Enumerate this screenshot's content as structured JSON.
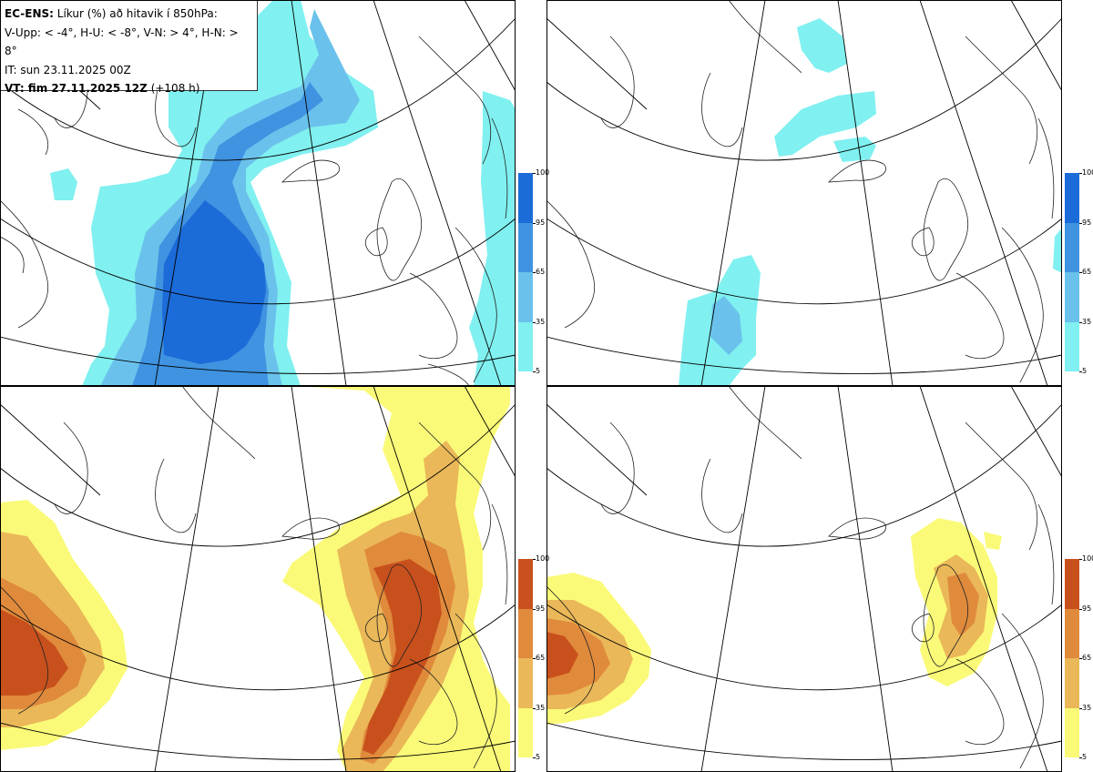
{
  "info": {
    "line1_bold": "EC-ENS:",
    "line1_rest": " Líkur (%) að hitavik í 850hPa:",
    "line2": "V-Upp: < -4°, H-U: < -8°, V-N: > 4°, H-N: > 8°",
    "line3": "IT: sun 23.11.2025 00Z",
    "line4_bold": "VT: fim 27.11.2025 12Z",
    "line4_rest": " (+108 h)"
  },
  "colorbars": {
    "ticks": [
      "100",
      "95",
      "65",
      "35",
      "5"
    ],
    "cold_colors": [
      "#1b6bd8",
      "#3f93e0",
      "#6ac2ec",
      "#80f0f0"
    ],
    "warm_colors": [
      "#c8501c",
      "#e08a3c",
      "#eab858",
      "#fafa78"
    ]
  },
  "panels": [
    {
      "id": "V-Upp",
      "threshold": "< -4°",
      "palette": "cold"
    },
    {
      "id": "H-U",
      "threshold": "< -8°",
      "palette": "cold"
    },
    {
      "id": "V-N",
      "threshold": "> 4°",
      "palette": "warm"
    },
    {
      "id": "H-N",
      "threshold": "> 8°",
      "palette": "warm"
    }
  ]
}
